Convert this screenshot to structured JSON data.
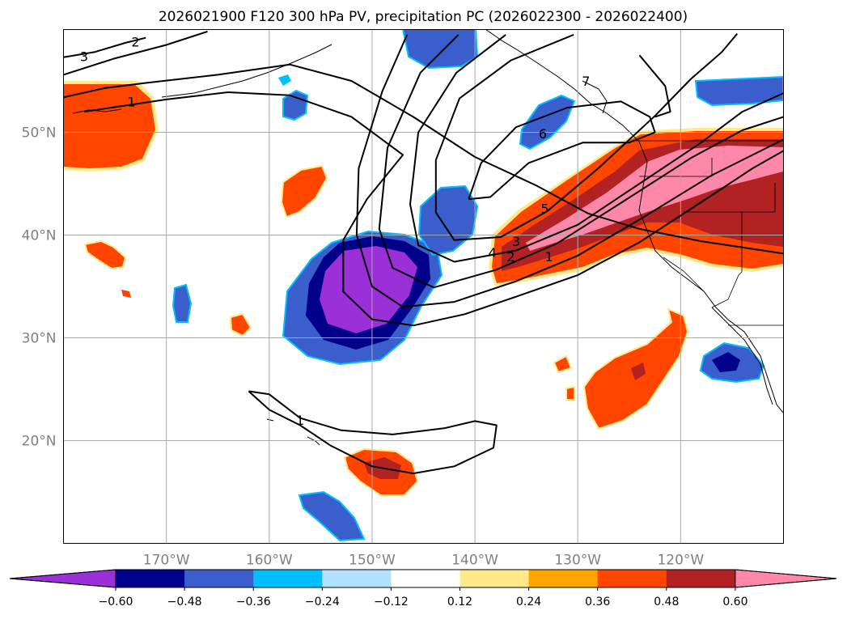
{
  "chart_data": {
    "type": "map-contour",
    "title": "2026021900 F120 300 hPa PV, precipitation PC (2026022300 - 2026022400)",
    "projection": "plate-carree",
    "lon_range": [
      -180,
      -110
    ],
    "lat_range": [
      10,
      60
    ],
    "lat_ticks": [
      {
        "value": 20,
        "label": "20°N"
      },
      {
        "value": 30,
        "label": "30°N"
      },
      {
        "value": 40,
        "label": "40°N"
      },
      {
        "value": 50,
        "label": "50°N"
      }
    ],
    "lon_ticks": [
      {
        "value": -170,
        "label": "170°W"
      },
      {
        "value": -160,
        "label": "160°W"
      },
      {
        "value": -150,
        "label": "150°W"
      },
      {
        "value": -140,
        "label": "140°W"
      },
      {
        "value": -130,
        "label": "130°W"
      },
      {
        "value": -120,
        "label": "120°W"
      }
    ],
    "grid": true,
    "colorbar": {
      "orientation": "horizontal",
      "extend": "both",
      "levels": [
        -0.6,
        -0.48,
        -0.36,
        -0.24,
        -0.12,
        0.12,
        0.24,
        0.36,
        0.48,
        0.6
      ],
      "labels": [
        "−0.60",
        "−0.48",
        "−0.36",
        "−0.24",
        "−0.12",
        "0.12",
        "0.24",
        "0.36",
        "0.48",
        "0.60"
      ],
      "colors": [
        "#9b30d9",
        "#00008b",
        "#3a5fcd",
        "#00bfff",
        "#b0e2ff",
        "#ffffff",
        "#ffe98a",
        "#ffa500",
        "#ff4500",
        "#b22222",
        "#ff88aa"
      ]
    },
    "pv_contour_labels": [
      "1",
      "2",
      "3",
      "4",
      "5",
      "6",
      "7"
    ],
    "pv_labels_shown": [
      {
        "text": "3",
        "lon": -178.0,
        "lat": 57.4
      },
      {
        "text": "2",
        "lon": -173.0,
        "lat": 58.8
      },
      {
        "text": "1",
        "lon": -173.4,
        "lat": 53.0
      },
      {
        "text": "6",
        "lon": -133.4,
        "lat": 49.9
      },
      {
        "text": "7",
        "lon": -129.2,
        "lat": 55.0
      },
      {
        "text": "5",
        "lon": -133.2,
        "lat": 42.6
      },
      {
        "text": "4",
        "lon": -138.3,
        "lat": 38.3
      },
      {
        "text": "3",
        "lon": -136.0,
        "lat": 39.4
      },
      {
        "text": "2",
        "lon": -136.5,
        "lat": 37.9
      },
      {
        "text": "1",
        "lon": -132.8,
        "lat": 37.9
      },
      {
        "text": "1",
        "lon": -157.0,
        "lat": 22.0
      }
    ],
    "pv_contours": [
      {
        "value": 1,
        "points": [
          [
            -180,
            53.4
          ],
          [
            -176,
            54.3
          ],
          [
            -172,
            54.8
          ],
          [
            -165,
            55.6
          ],
          [
            -158,
            56.6
          ],
          [
            -152,
            55.0
          ],
          [
            -146,
            51.5
          ],
          [
            -140,
            47.6
          ],
          [
            -134,
            44.8
          ],
          [
            -129,
            42.1
          ],
          [
            -124,
            40.6
          ],
          [
            -118,
            39.4
          ],
          [
            -110,
            38.2
          ]
        ]
      },
      {
        "value": 2,
        "points": [
          [
            -180,
            55.6
          ],
          [
            -175,
            57.2
          ],
          [
            -170,
            58.5
          ],
          [
            -166,
            59.8
          ]
        ]
      },
      {
        "value": 3,
        "points": [
          [
            -180,
            57.3
          ],
          [
            -177,
            57.8
          ],
          [
            -174,
            58.7
          ],
          [
            -172,
            59.2
          ]
        ]
      },
      {
        "value": 1,
        "points": [
          [
            -178,
            52
          ],
          [
            -174,
            52.6
          ],
          [
            -170,
            53.2
          ],
          [
            -164,
            53.9
          ],
          [
            -158,
            53.6
          ],
          [
            -152,
            51.5
          ],
          [
            -147,
            47.8
          ],
          [
            -150.5,
            43.5
          ],
          [
            -152.8,
            39.5
          ],
          [
            -152.8,
            34.5
          ],
          [
            -150,
            31.8
          ],
          [
            -146,
            31.2
          ],
          [
            -141,
            32.3
          ],
          [
            -136,
            34
          ],
          [
            -130,
            36.1
          ],
          [
            -124,
            39.3
          ],
          [
            -118,
            43.2
          ],
          [
            -113,
            46.5
          ],
          [
            -110,
            48.2
          ]
        ]
      },
      {
        "value": 2,
        "points": [
          [
            -146.6,
            59.5
          ],
          [
            -149,
            54
          ],
          [
            -151.3,
            46.5
          ],
          [
            -151.5,
            40
          ],
          [
            -150,
            35
          ],
          [
            -147,
            33
          ],
          [
            -142,
            33.5
          ],
          [
            -136,
            35.5
          ],
          [
            -130,
            38
          ],
          [
            -124,
            41.5
          ],
          [
            -117,
            45.8
          ],
          [
            -110,
            49.3
          ]
        ]
      },
      {
        "value": 3,
        "points": [
          [
            -141.6,
            59.5
          ],
          [
            -145.3,
            55.8
          ],
          [
            -148.5,
            48.5
          ],
          [
            -149.3,
            40.6
          ],
          [
            -148,
            36.8
          ],
          [
            -144,
            34.9
          ],
          [
            -138,
            36.6
          ],
          [
            -132,
            39.2
          ],
          [
            -126,
            43
          ],
          [
            -119,
            47.5
          ],
          [
            -114,
            50.2
          ],
          [
            -110,
            51.5
          ]
        ]
      },
      {
        "value": 4,
        "points": [
          [
            -137,
            59.5
          ],
          [
            -141.8,
            55.8
          ],
          [
            -145.5,
            50
          ],
          [
            -146.3,
            43
          ],
          [
            -145.5,
            39
          ],
          [
            -142,
            37.4
          ],
          [
            -136,
            38.5
          ],
          [
            -130,
            41
          ],
          [
            -124,
            45
          ],
          [
            -118,
            49
          ],
          [
            -114,
            52
          ],
          [
            -110,
            53.8
          ]
        ]
      },
      {
        "value": 5,
        "points": [
          [
            -130.4,
            59.5
          ],
          [
            -136.5,
            57
          ],
          [
            -141.5,
            53.3
          ],
          [
            -143.8,
            47.3
          ],
          [
            -143.8,
            42.2
          ],
          [
            -142,
            39.5
          ],
          [
            -137.5,
            39.8
          ],
          [
            -133,
            42.3
          ],
          [
            -128,
            46.5
          ],
          [
            -122.5,
            51.6
          ],
          [
            -119,
            55.2
          ],
          [
            -116,
            57.8
          ],
          [
            -114.5,
            59.6
          ]
        ]
      },
      {
        "value": 6,
        "points": [
          [
            -140.6,
            43.5
          ],
          [
            -139.4,
            47
          ],
          [
            -136,
            50.5
          ],
          [
            -131,
            52.4
          ],
          [
            -125.8,
            53
          ],
          [
            -123,
            51.5
          ],
          [
            -122.5,
            50
          ],
          [
            -125,
            49
          ],
          [
            -129.5,
            49
          ],
          [
            -134.8,
            47
          ],
          [
            -138.5,
            43.7
          ],
          [
            -140.6,
            43.5
          ]
        ]
      },
      {
        "value": 7,
        "points": [
          [
            -124,
            57.5
          ],
          [
            -121.5,
            54.5
          ],
          [
            -121,
            52
          ],
          [
            -122.5,
            51.5
          ]
        ]
      },
      {
        "value": 1,
        "points": [
          [
            -162,
            24.8
          ],
          [
            -160,
            23
          ],
          [
            -157,
            21.5
          ],
          [
            -154,
            19.5
          ],
          [
            -150,
            17.5
          ],
          [
            -146,
            16.8
          ],
          [
            -142,
            17.5
          ],
          [
            -138.2,
            19.3
          ],
          [
            -137.9,
            21.5
          ],
          [
            -140,
            21.9
          ],
          [
            -143,
            21.2
          ],
          [
            -148,
            20.6
          ],
          [
            -153,
            21
          ],
          [
            -157,
            22.2
          ],
          [
            -160,
            24.5
          ],
          [
            -162,
            24.8
          ]
        ]
      }
    ]
  }
}
